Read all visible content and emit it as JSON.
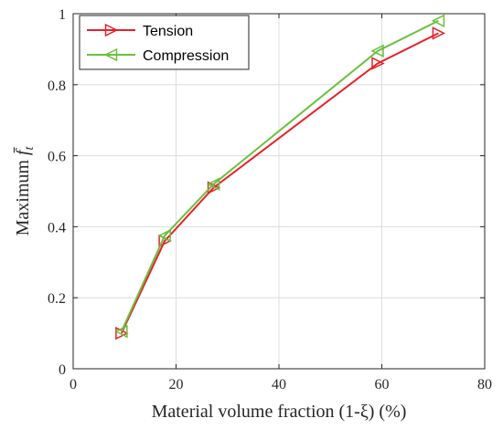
{
  "chart_data": {
    "type": "line",
    "xlabel": "Material volume fraction (1-ξ) (%)",
    "ylabel": {
      "prefix": "Maximum ",
      "symbol": "f̄",
      "subscript": "t"
    },
    "xlim": [
      0,
      80
    ],
    "ylim": [
      0,
      1
    ],
    "xticks": [
      0,
      20,
      40,
      60,
      80
    ],
    "yticks": [
      0,
      0.2,
      0.4,
      0.6,
      0.8,
      1
    ],
    "xtick_labels": [
      "0",
      "20",
      "40",
      "60",
      "80"
    ],
    "ytick_labels": [
      "0",
      "0.2",
      "0.4",
      "0.6",
      "0.8",
      "1"
    ],
    "grid": true,
    "legend_position": "top-left",
    "series": [
      {
        "name": "Tension",
        "color": "#e8202a",
        "marker": "triangle-right",
        "x": [
          9.4,
          17.8,
          27.3,
          59.2,
          71.0
        ],
        "y": [
          0.1,
          0.36,
          0.51,
          0.86,
          0.945
        ]
      },
      {
        "name": "Compression",
        "color": "#6abf3e",
        "marker": "triangle-left",
        "x": [
          9.4,
          17.8,
          27.3,
          59.2,
          71.0
        ],
        "y": [
          0.105,
          0.375,
          0.52,
          0.895,
          0.98
        ]
      }
    ]
  }
}
